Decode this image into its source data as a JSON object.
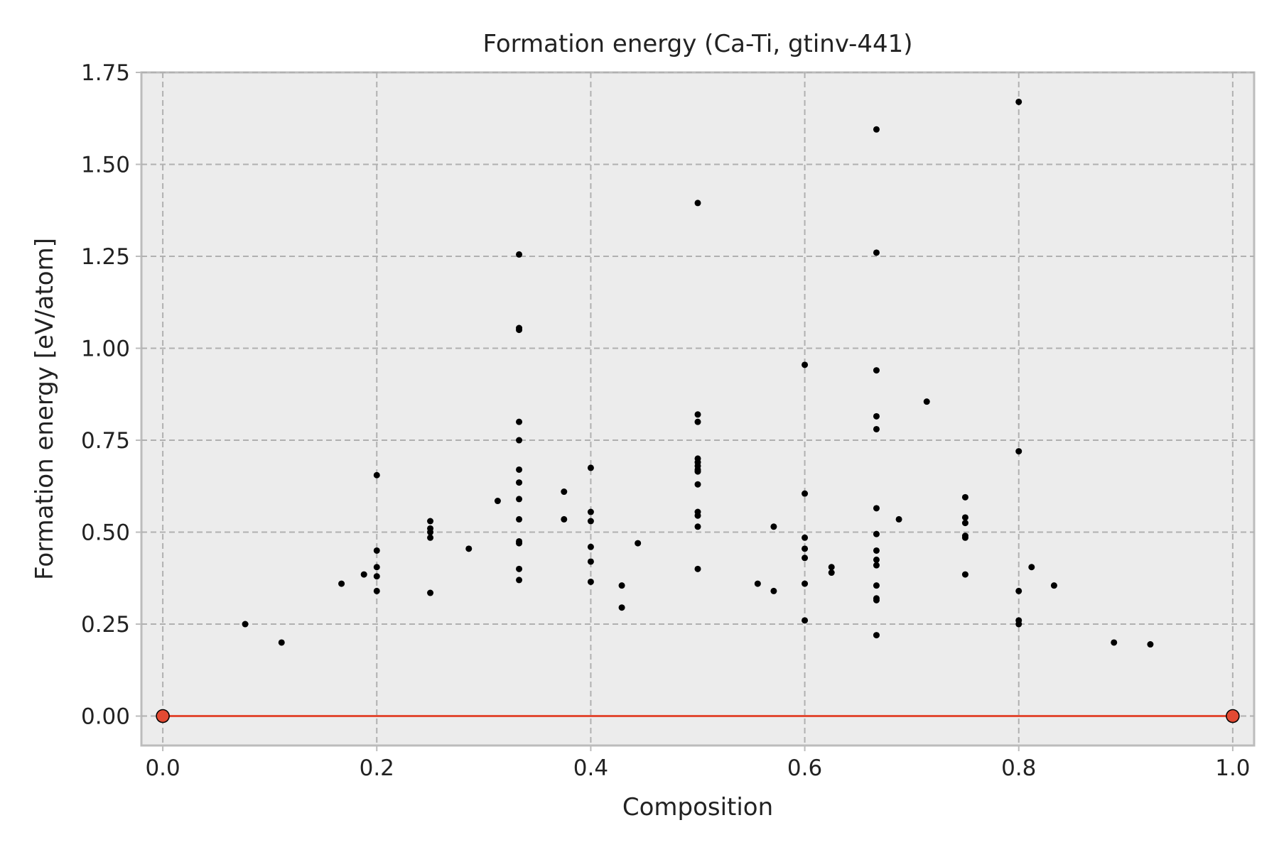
{
  "chart_data": {
    "type": "scatter",
    "title": "Formation energy (Ca-Ti, gtinv-441)",
    "xlabel": "Composition",
    "ylabel": "Formation energy [eV/atom]",
    "xlim": [
      -0.02,
      1.02
    ],
    "ylim": [
      -0.08,
      1.75
    ],
    "xticks": [
      "0.0",
      "0.2",
      "0.4",
      "0.6",
      "0.8",
      "1.0"
    ],
    "xtick_values": [
      0.0,
      0.2,
      0.4,
      0.6,
      0.8,
      1.0
    ],
    "yticks": [
      "0.00",
      "0.25",
      "0.50",
      "0.75",
      "1.00",
      "1.25",
      "1.50",
      "1.75"
    ],
    "ytick_values": [
      0.0,
      0.25,
      0.5,
      0.75,
      1.0,
      1.25,
      1.5,
      1.75
    ],
    "grid": true,
    "colors": {
      "points": "#000000",
      "hull": "#e24a33",
      "background": "#ececec",
      "grid": "#b0b0b0"
    },
    "series": [
      {
        "points": [
          [
            0.077,
            0.25
          ],
          [
            0.111,
            0.2
          ],
          [
            0.167,
            0.36
          ],
          [
            0.188,
            0.385
          ],
          [
            0.2,
            0.655
          ],
          [
            0.2,
            0.45
          ],
          [
            0.2,
            0.405
          ],
          [
            0.2,
            0.38
          ],
          [
            0.2,
            0.34
          ],
          [
            0.25,
            0.53
          ],
          [
            0.25,
            0.51
          ],
          [
            0.25,
            0.5
          ],
          [
            0.25,
            0.485
          ],
          [
            0.25,
            0.335
          ],
          [
            0.286,
            0.455
          ],
          [
            0.313,
            0.585
          ],
          [
            0.333,
            1.255
          ],
          [
            0.333,
            1.055
          ],
          [
            0.333,
            1.05
          ],
          [
            0.333,
            0.8
          ],
          [
            0.333,
            0.75
          ],
          [
            0.333,
            0.67
          ],
          [
            0.333,
            0.635
          ],
          [
            0.333,
            0.59
          ],
          [
            0.333,
            0.535
          ],
          [
            0.333,
            0.475
          ],
          [
            0.333,
            0.47
          ],
          [
            0.333,
            0.4
          ],
          [
            0.333,
            0.37
          ],
          [
            0.375,
            0.61
          ],
          [
            0.375,
            0.535
          ],
          [
            0.4,
            0.675
          ],
          [
            0.4,
            0.555
          ],
          [
            0.4,
            0.53
          ],
          [
            0.4,
            0.46
          ],
          [
            0.4,
            0.42
          ],
          [
            0.4,
            0.365
          ],
          [
            0.429,
            0.355
          ],
          [
            0.429,
            0.295
          ],
          [
            0.444,
            0.47
          ],
          [
            0.5,
            1.395
          ],
          [
            0.5,
            0.82
          ],
          [
            0.5,
            0.8
          ],
          [
            0.5,
            0.7
          ],
          [
            0.5,
            0.69
          ],
          [
            0.5,
            0.68
          ],
          [
            0.5,
            0.67
          ],
          [
            0.5,
            0.665
          ],
          [
            0.5,
            0.63
          ],
          [
            0.5,
            0.555
          ],
          [
            0.5,
            0.545
          ],
          [
            0.5,
            0.515
          ],
          [
            0.5,
            0.4
          ],
          [
            0.556,
            0.36
          ],
          [
            0.571,
            0.515
          ],
          [
            0.571,
            0.34
          ],
          [
            0.6,
            0.955
          ],
          [
            0.6,
            0.605
          ],
          [
            0.6,
            0.485
          ],
          [
            0.6,
            0.455
          ],
          [
            0.6,
            0.43
          ],
          [
            0.6,
            0.36
          ],
          [
            0.6,
            0.26
          ],
          [
            0.625,
            0.405
          ],
          [
            0.625,
            0.39
          ],
          [
            0.667,
            1.595
          ],
          [
            0.667,
            1.26
          ],
          [
            0.667,
            0.94
          ],
          [
            0.667,
            0.815
          ],
          [
            0.667,
            0.78
          ],
          [
            0.667,
            0.565
          ],
          [
            0.667,
            0.495
          ],
          [
            0.667,
            0.45
          ],
          [
            0.667,
            0.425
          ],
          [
            0.667,
            0.41
          ],
          [
            0.667,
            0.355
          ],
          [
            0.667,
            0.32
          ],
          [
            0.667,
            0.315
          ],
          [
            0.667,
            0.22
          ],
          [
            0.688,
            0.535
          ],
          [
            0.714,
            0.855
          ],
          [
            0.75,
            0.595
          ],
          [
            0.75,
            0.54
          ],
          [
            0.75,
            0.525
          ],
          [
            0.75,
            0.49
          ],
          [
            0.75,
            0.485
          ],
          [
            0.75,
            0.385
          ],
          [
            0.8,
            1.67
          ],
          [
            0.8,
            0.72
          ],
          [
            0.8,
            0.34
          ],
          [
            0.8,
            0.26
          ],
          [
            0.8,
            0.25
          ],
          [
            0.812,
            0.405
          ],
          [
            0.833,
            0.355
          ],
          [
            0.889,
            0.2
          ],
          [
            0.923,
            0.195
          ]
        ]
      },
      {
        "kind": "convex-hull",
        "points": [
          [
            0.0,
            0.0
          ],
          [
            1.0,
            0.0
          ]
        ]
      }
    ]
  }
}
